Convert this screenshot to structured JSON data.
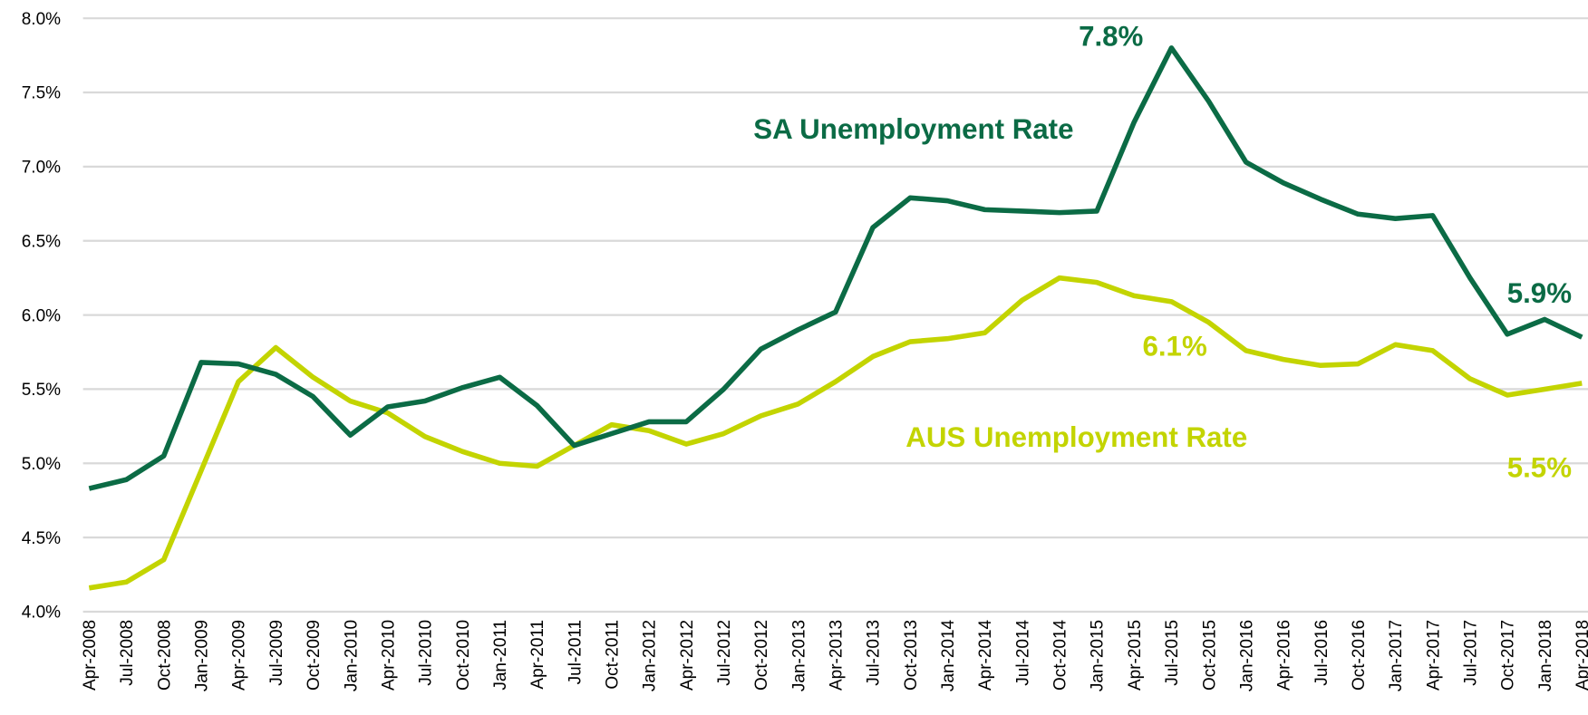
{
  "chart_data": {
    "type": "line",
    "categories": [
      "Apr-2008",
      "Jul-2008",
      "Oct-2008",
      "Jan-2009",
      "Apr-2009",
      "Jul-2009",
      "Oct-2009",
      "Jan-2010",
      "Apr-2010",
      "Jul-2010",
      "Oct-2010",
      "Jan-2011",
      "Apr-2011",
      "Jul-2011",
      "Oct-2011",
      "Jan-2012",
      "Apr-2012",
      "Jul-2012",
      "Oct-2012",
      "Jan-2013",
      "Apr-2013",
      "Jul-2013",
      "Oct-2013",
      "Jan-2014",
      "Apr-2014",
      "Jul-2014",
      "Oct-2014",
      "Jan-2015",
      "Apr-2015",
      "Jul-2015",
      "Oct-2015",
      "Jan-2016",
      "Apr-2016",
      "Jul-2016",
      "Oct-2016",
      "Jan-2017",
      "Apr-2017",
      "Jul-2017",
      "Oct-2017",
      "Jan-2018",
      "Apr-2018"
    ],
    "series": [
      {
        "name": "SA Unemployment Rate",
        "color": "#0b6b45",
        "values": [
          4.83,
          4.89,
          5.05,
          5.68,
          5.67,
          5.6,
          5.45,
          5.19,
          5.38,
          5.42,
          5.51,
          5.58,
          5.39,
          5.12,
          5.2,
          5.28,
          5.28,
          5.5,
          5.77,
          5.9,
          6.02,
          6.59,
          6.79,
          6.77,
          6.71,
          6.7,
          6.69,
          6.7,
          7.3,
          7.8,
          7.44,
          7.03,
          6.89,
          6.78,
          6.68,
          6.65,
          6.67,
          6.25,
          5.87,
          5.97,
          5.85
        ]
      },
      {
        "name": "AUS Unemployment Rate",
        "color": "#c3d400",
        "values": [
          4.16,
          4.2,
          4.35,
          4.95,
          5.55,
          5.78,
          5.58,
          5.42,
          5.34,
          5.18,
          5.08,
          5.0,
          4.98,
          5.12,
          5.26,
          5.22,
          5.13,
          5.2,
          5.32,
          5.4,
          5.55,
          5.72,
          5.82,
          5.84,
          5.88,
          6.1,
          6.25,
          6.22,
          6.13,
          6.09,
          5.95,
          5.76,
          5.7,
          5.66,
          5.67,
          5.8,
          5.76,
          5.57,
          5.46,
          5.5,
          5.54
        ]
      }
    ],
    "annotations": [
      {
        "text": "7.8%",
        "series": 0
      },
      {
        "text": "SA Unemployment Rate",
        "series": 0
      },
      {
        "text": "5.9%",
        "series": 0
      },
      {
        "text": "6.1%",
        "series": 1
      },
      {
        "text": "AUS Unemployment Rate",
        "series": 1
      },
      {
        "text": "5.5%",
        "series": 1
      }
    ],
    "ylim": [
      4.0,
      8.0
    ],
    "yticks": [
      {
        "value": 4.0,
        "label": "4.0%"
      },
      {
        "value": 4.5,
        "label": "4.5%"
      },
      {
        "value": 5.0,
        "label": "5.0%"
      },
      {
        "value": 5.5,
        "label": "5.5%"
      },
      {
        "value": 6.0,
        "label": "6.0%"
      },
      {
        "value": 6.5,
        "label": "6.5%"
      },
      {
        "value": 7.0,
        "label": "7.0%"
      },
      {
        "value": 7.5,
        "label": "7.5%"
      },
      {
        "value": 8.0,
        "label": "8.0%"
      }
    ],
    "grid": true
  }
}
